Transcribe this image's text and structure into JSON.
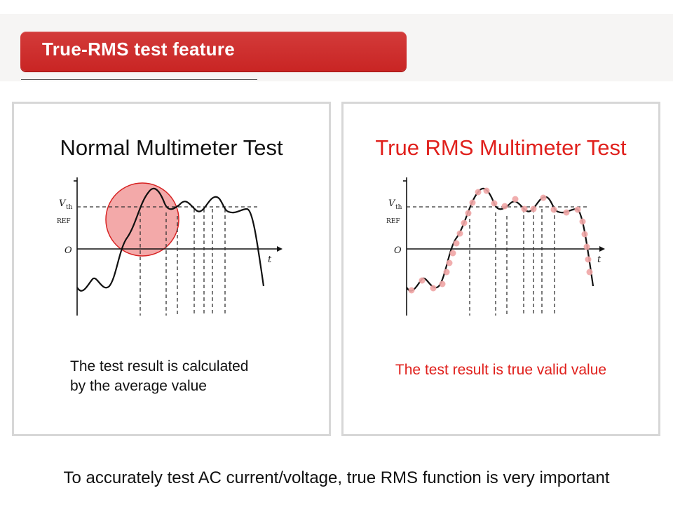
{
  "banner": {
    "title": "True-RMS test feature"
  },
  "left_panel": {
    "title": "Normal Multimeter Test",
    "caption_line1": "The test result is calculated",
    "caption_line2": "by the average value",
    "diagram": {
      "v_label": "V",
      "v_sub": "th",
      "ref_label": "REF",
      "origin_label": "O",
      "t_label": "t"
    }
  },
  "right_panel": {
    "title": "True RMS Multimeter Test",
    "caption": "The test result is true valid value",
    "diagram": {
      "v_label": "V",
      "v_sub": "th",
      "ref_label": "REF",
      "origin_label": "O",
      "t_label": "t"
    }
  },
  "footer": {
    "text": "To accurately test AC current/voltage, true RMS function is very important"
  },
  "colors": {
    "accent_red": "#e0201c",
    "banner_red": "#cc2a29",
    "highlight_circle": "#f2a0a0",
    "sample_dot": "#f0a5a5"
  }
}
